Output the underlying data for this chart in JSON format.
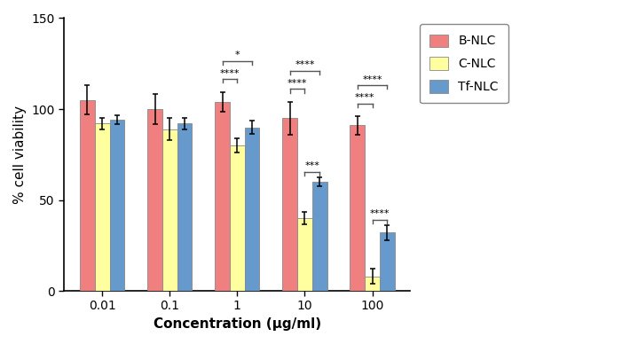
{
  "categories": [
    "0.01",
    "0.1",
    "1",
    "10",
    "100"
  ],
  "b_nlc": [
    105.0,
    100.0,
    104.0,
    95.0,
    91.0
  ],
  "c_nlc": [
    92.0,
    89.0,
    80.0,
    40.0,
    8.0
  ],
  "tf_nlc": [
    94.0,
    92.0,
    90.0,
    60.0,
    32.0
  ],
  "b_nlc_err": [
    8.0,
    8.5,
    5.5,
    9.0,
    5.0
  ],
  "c_nlc_err": [
    3.0,
    6.0,
    4.0,
    3.5,
    4.0
  ],
  "tf_nlc_err": [
    2.5,
    3.0,
    3.5,
    2.5,
    4.0
  ],
  "b_nlc_color": "#F08080",
  "c_nlc_color": "#FFFFA0",
  "tf_nlc_color": "#6699CC",
  "ylabel": "% cell viability",
  "xlabel": "Concentration (μg/ml)",
  "ylim": [
    0,
    150
  ],
  "yticks": [
    0,
    50,
    100,
    150
  ],
  "bar_width": 0.22,
  "legend_labels": [
    "B-NLC",
    "C-NLC",
    "Tf-NLC"
  ]
}
